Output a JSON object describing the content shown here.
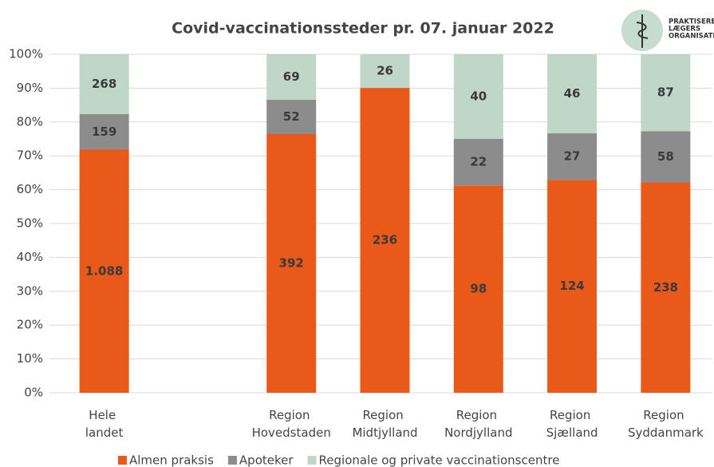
{
  "chart_data": {
    "type": "bar",
    "stacking": "percent",
    "title": "Covid-vaccinationssteder pr. 07. januar 2022",
    "logo": {
      "lines": [
        "PRAKTISERENDE",
        "LÆGERS",
        "ORGANISATION"
      ]
    },
    "categories": [
      "Hele landet",
      null,
      "Region Hovedstaden",
      "Region Midtjylland",
      "Region Nordjylland",
      "Region Sjælland",
      "Region Syddanmark"
    ],
    "series": [
      {
        "name": "Almen praksis",
        "color": "#e8591a",
        "values": [
          1088,
          null,
          392,
          236,
          98,
          124,
          238
        ],
        "value_labels": [
          "1.088",
          null,
          "392",
          "236",
          "98",
          "124",
          "238"
        ]
      },
      {
        "name": "Apoteker",
        "color": "#8c8c8c",
        "values": [
          159,
          null,
          52,
          null,
          22,
          27,
          58
        ]
      },
      {
        "name": "Regionale og private vaccinationscentre",
        "color": "#bfd6c9",
        "values": [
          268,
          null,
          69,
          26,
          40,
          46,
          87
        ]
      }
    ],
    "ylim": [
      0,
      100
    ],
    "yticks": [
      {
        "value": 0,
        "label": "0%"
      },
      {
        "value": 10,
        "label": "10%"
      },
      {
        "value": 20,
        "label": "20%"
      },
      {
        "value": 30,
        "label": "30%"
      },
      {
        "value": 40,
        "label": "40%"
      },
      {
        "value": 50,
        "label": "50%"
      },
      {
        "value": 60,
        "label": "60%"
      },
      {
        "value": 70,
        "label": "70%"
      },
      {
        "value": 80,
        "label": "80%"
      },
      {
        "value": 90,
        "label": "90%"
      },
      {
        "value": 100,
        "label": "100%"
      }
    ],
    "grid": true,
    "legend": "bottom"
  }
}
